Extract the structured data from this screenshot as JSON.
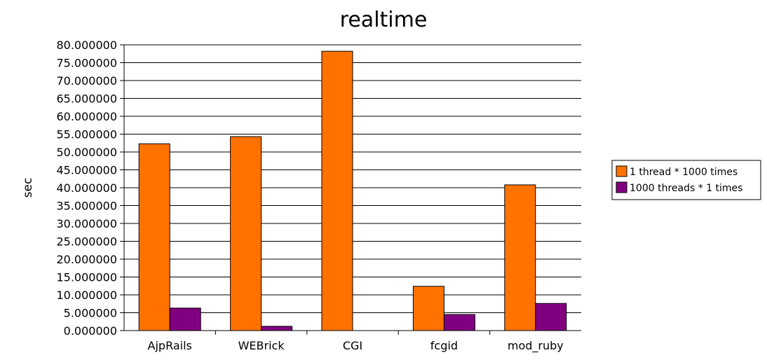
{
  "chart_data": {
    "type": "bar",
    "title": "realtime",
    "xlabel": "",
    "ylabel": "sec",
    "categories": [
      "AjpRails",
      "WEBrick",
      "CGI",
      "fcgid",
      "mod_ruby"
    ],
    "series": [
      {
        "name": "1 thread * 1000 times",
        "color": "#ff7200",
        "values": [
          52.3,
          54.3,
          78.2,
          12.4,
          40.8
        ]
      },
      {
        "name": "1000 threads * 1 times",
        "color": "#800080",
        "values": [
          6.3,
          1.2,
          0.0,
          4.5,
          7.6
        ]
      }
    ],
    "ylim": [
      0,
      80
    ],
    "ytick_step": 5,
    "ytick_labels": [
      "0.000000",
      "5.000000",
      "10.000000",
      "15.000000",
      "20.000000",
      "25.000000",
      "30.000000",
      "35.000000",
      "40.000000",
      "45.000000",
      "50.000000",
      "55.000000",
      "60.000000",
      "65.000000",
      "70.000000",
      "75.000000",
      "80.000000"
    ],
    "grid": true,
    "legend_position": "right"
  }
}
